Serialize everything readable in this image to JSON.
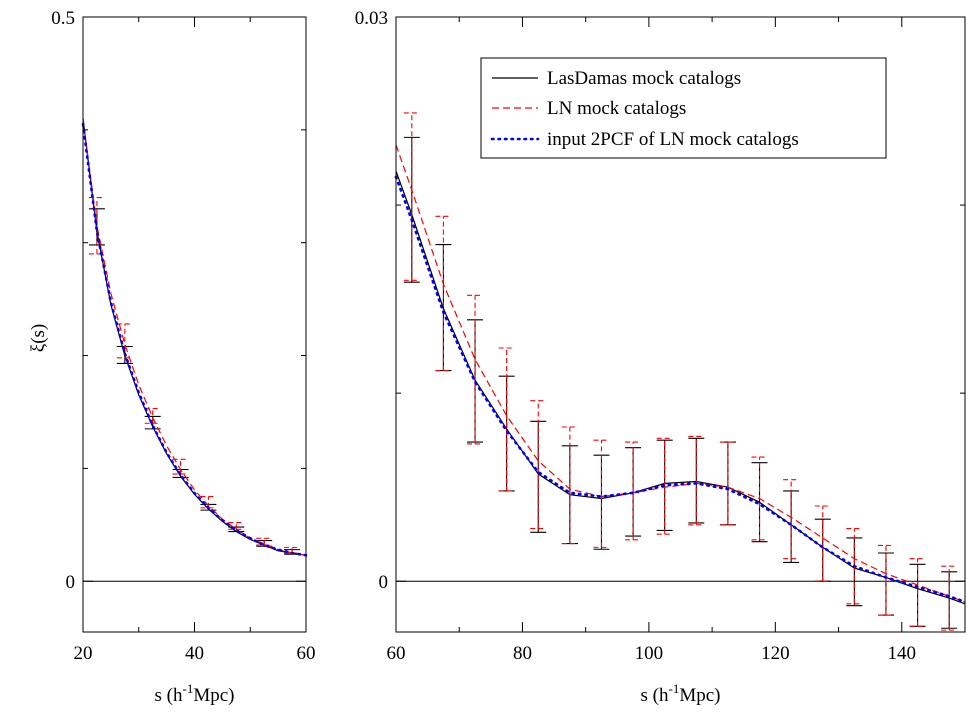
{
  "chart_data": [
    {
      "type": "line",
      "xlabel": "s (h⁻¹Mpc)",
      "ylabel": "ξ(s)",
      "xlim": [
        20,
        60
      ],
      "ylim": [
        -0.045,
        0.5
      ],
      "xticks": [
        20,
        40,
        60
      ],
      "yticks": [
        0,
        0.5
      ],
      "ytick_labels": [
        "0",
        "0.5"
      ],
      "zero_line": true,
      "series": [
        {
          "name": "LasDamas mock catalogs",
          "style": "solid",
          "color": "#000000",
          "x": [
            20,
            22.5,
            25,
            27.5,
            30,
            32.5,
            35,
            37.5,
            40,
            42.5,
            45,
            47.5,
            50,
            52.5,
            55,
            57.5,
            60
          ],
          "y": [
            0.41,
            0.31,
            0.245,
            0.2,
            0.165,
            0.137,
            0.113,
            0.093,
            0.077,
            0.064,
            0.053,
            0.044,
            0.037,
            0.032,
            0.027,
            0.025,
            0.023
          ],
          "errors_x": [
            22.5,
            27.5,
            32.5,
            37.5,
            42.5,
            47.5,
            52.5,
            57.5
          ],
          "errors_low": [
            0.298,
            0.193,
            0.135,
            0.092,
            0.063,
            0.044,
            0.031,
            0.024
          ],
          "errors_high": [
            0.33,
            0.208,
            0.146,
            0.099,
            0.068,
            0.048,
            0.036,
            0.028
          ]
        },
        {
          "name": "LN mock catalogs",
          "style": "dashed",
          "color": "#ff0000",
          "x": [
            20,
            22.5,
            25,
            27.5,
            30,
            32.5,
            35,
            37.5,
            40,
            42.5,
            45,
            47.5,
            50,
            52.5,
            55,
            57.5,
            60
          ],
          "y": [
            0.41,
            0.315,
            0.255,
            0.21,
            0.174,
            0.145,
            0.12,
            0.099,
            0.081,
            0.067,
            0.055,
            0.046,
            0.038,
            0.033,
            0.028,
            0.025,
            0.023
          ],
          "errors_x": [
            22.5,
            27.5,
            32.5,
            37.5,
            42.5,
            47.5,
            52.5,
            57.5
          ],
          "errors_low": [
            0.29,
            0.198,
            0.14,
            0.095,
            0.065,
            0.046,
            0.032,
            0.025
          ],
          "errors_high": [
            0.34,
            0.228,
            0.153,
            0.108,
            0.075,
            0.052,
            0.038,
            0.03
          ]
        },
        {
          "name": "input 2PCF of LN mock catalogs",
          "style": "dotted",
          "color": "#0000ff",
          "x": [
            20,
            22.5,
            25,
            27.5,
            30,
            32.5,
            35,
            37.5,
            40,
            42.5,
            45,
            47.5,
            50,
            52.5,
            55,
            57.5,
            60
          ],
          "y": [
            0.405,
            0.31,
            0.247,
            0.202,
            0.167,
            0.138,
            0.114,
            0.094,
            0.078,
            0.065,
            0.054,
            0.045,
            0.038,
            0.032,
            0.028,
            0.025,
            0.023
          ]
        }
      ]
    },
    {
      "type": "line",
      "xlabel": "s (h⁻¹Mpc)",
      "ylabel": "",
      "xlim": [
        60,
        150
      ],
      "ylim": [
        -0.0027,
        0.03
      ],
      "xticks": [
        60,
        80,
        100,
        120,
        140
      ],
      "yticks": [
        0,
        0.03
      ],
      "ytick_labels": [
        "0",
        "0.03"
      ],
      "zero_line": true,
      "legend_position": "top-right",
      "series": [
        {
          "name": "LasDamas mock catalogs",
          "style": "solid",
          "color": "#000000",
          "x": [
            60,
            62.5,
            67.5,
            72.5,
            77.5,
            82.5,
            87.5,
            92.5,
            97.5,
            102.5,
            107.5,
            112.5,
            117.5,
            122.5,
            127.5,
            132.5,
            137.5,
            142.5,
            147.5,
            150
          ],
          "y": [
            0.0218,
            0.0195,
            0.0145,
            0.0107,
            0.0081,
            0.0057,
            0.0046,
            0.0044,
            0.0047,
            0.0052,
            0.0053,
            0.005,
            0.0042,
            0.003,
            0.0018,
            0.0007,
            0.0002,
            -0.0004,
            -0.0009,
            -0.0012
          ],
          "errors_x": [
            62.5,
            67.5,
            72.5,
            77.5,
            82.5,
            87.5,
            92.5,
            97.5,
            102.5,
            107.5,
            112.5,
            117.5,
            122.5,
            127.5,
            132.5,
            137.5,
            142.5,
            147.5
          ],
          "errors_low": [
            0.0159,
            0.0112,
            0.0074,
            0.0048,
            0.0026,
            0.002,
            0.0017,
            0.0024,
            0.0027,
            0.0031,
            0.003,
            0.0021,
            0.001,
            0.0,
            -0.0013,
            -0.0018,
            -0.0024,
            -0.0025
          ],
          "errors_high": [
            0.0236,
            0.0179,
            0.0139,
            0.0109,
            0.0085,
            0.0072,
            0.0067,
            0.0071,
            0.0075,
            0.0076,
            0.0074,
            0.0063,
            0.0048,
            0.0033,
            0.0023,
            0.0015,
            0.0009,
            0.0005
          ]
        },
        {
          "name": "LN mock catalogs",
          "style": "dashed",
          "color": "#ff0000",
          "x": [
            60,
            62.5,
            67.5,
            72.5,
            77.5,
            82.5,
            87.5,
            92.5,
            97.5,
            102.5,
            107.5,
            112.5,
            117.5,
            122.5,
            127.5,
            132.5,
            137.5,
            142.5,
            147.5,
            150
          ],
          "y": [
            0.0232,
            0.0208,
            0.0158,
            0.0118,
            0.0088,
            0.0064,
            0.0049,
            0.0045,
            0.0047,
            0.005,
            0.0052,
            0.005,
            0.0044,
            0.0034,
            0.0023,
            0.0012,
            0.0004,
            -0.0002,
            -0.0008,
            -0.0011
          ],
          "errors_x": [
            62.5,
            67.5,
            72.5,
            77.5,
            82.5,
            87.5,
            92.5,
            97.5,
            102.5,
            107.5,
            112.5,
            117.5,
            122.5,
            127.5,
            132.5,
            137.5,
            142.5,
            147.5
          ],
          "errors_low": [
            0.016,
            0.0112,
            0.0073,
            0.0048,
            0.0028,
            0.002,
            0.0018,
            0.0022,
            0.0025,
            0.003,
            0.003,
            0.0022,
            0.0012,
            0.0,
            -0.0012,
            -0.0018,
            -0.0024,
            -0.0026
          ],
          "errors_high": [
            0.0249,
            0.0194,
            0.0152,
            0.0124,
            0.0096,
            0.0082,
            0.0075,
            0.0074,
            0.0076,
            0.0077,
            0.0074,
            0.0066,
            0.0054,
            0.004,
            0.0028,
            0.0019,
            0.0012,
            0.0008
          ]
        },
        {
          "name": "input 2PCF of LN mock catalogs",
          "style": "dotted",
          "color": "#0000ff",
          "x": [
            60,
            62.5,
            67.5,
            72.5,
            77.5,
            82.5,
            87.5,
            92.5,
            97.5,
            102.5,
            107.5,
            112.5,
            117.5,
            122.5,
            127.5,
            132.5,
            137.5,
            142.5,
            147.5,
            150
          ],
          "y": [
            0.0215,
            0.0192,
            0.0143,
            0.0106,
            0.008,
            0.0058,
            0.0047,
            0.0045,
            0.0047,
            0.0051,
            0.0052,
            0.0049,
            0.0041,
            0.003,
            0.0018,
            0.0008,
            0.0002,
            -0.0003,
            -0.0008,
            -0.0011
          ]
        }
      ]
    }
  ]
}
